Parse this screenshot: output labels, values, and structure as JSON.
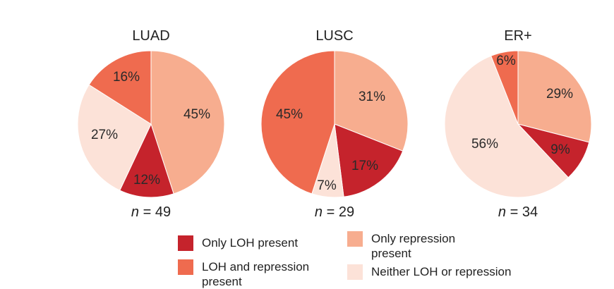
{
  "chart_data": {
    "type": "pie",
    "categories": [
      "Only LOH present",
      "Only repression present",
      "LOH and repression present",
      "Neither LOH or repression"
    ],
    "colors": {
      "Only LOH present": "#c5232c",
      "Only repression present": "#f7ad8f",
      "LOH and repression present": "#ef6b4f",
      "Neither LOH or repression": "#fce2d8"
    },
    "charts": [
      {
        "title": "LUAD",
        "n_label": "n = 49",
        "slices": [
          {
            "category": "Only repression present",
            "value": 45,
            "label": "45%"
          },
          {
            "category": "Only LOH present",
            "value": 12,
            "label": "12%"
          },
          {
            "category": "Neither LOH or repression",
            "value": 27,
            "label": "27%"
          },
          {
            "category": "LOH and repression present",
            "value": 16,
            "label": "16%"
          }
        ]
      },
      {
        "title": "LUSC",
        "n_label": "n = 29",
        "slices": [
          {
            "category": "Only repression present",
            "value": 31,
            "label": "31%"
          },
          {
            "category": "Only LOH present",
            "value": 17,
            "label": "17%"
          },
          {
            "category": "Neither LOH or repression",
            "value": 7,
            "label": "7%"
          },
          {
            "category": "LOH and repression present",
            "value": 45,
            "label": "45%"
          }
        ]
      },
      {
        "title": "ER+",
        "n_label": "n = 34",
        "slices": [
          {
            "category": "Only repression present",
            "value": 29,
            "label": "29%"
          },
          {
            "category": "Only LOH present",
            "value": 9,
            "label": "9%"
          },
          {
            "category": "Neither LOH or repression",
            "value": 56,
            "label": "56%"
          },
          {
            "category": "LOH and repression present",
            "value": 6,
            "label": "6%"
          }
        ]
      }
    ]
  },
  "legend": {
    "items": [
      {
        "label": "Only LOH present",
        "color": "#c5232c"
      },
      {
        "label": "Only repression present",
        "color": "#f7ad8f"
      },
      {
        "label": "LOH and repression present",
        "color": "#ef6b4f"
      },
      {
        "label": "Neither LOH or repression",
        "color": "#fce2d8"
      }
    ]
  }
}
